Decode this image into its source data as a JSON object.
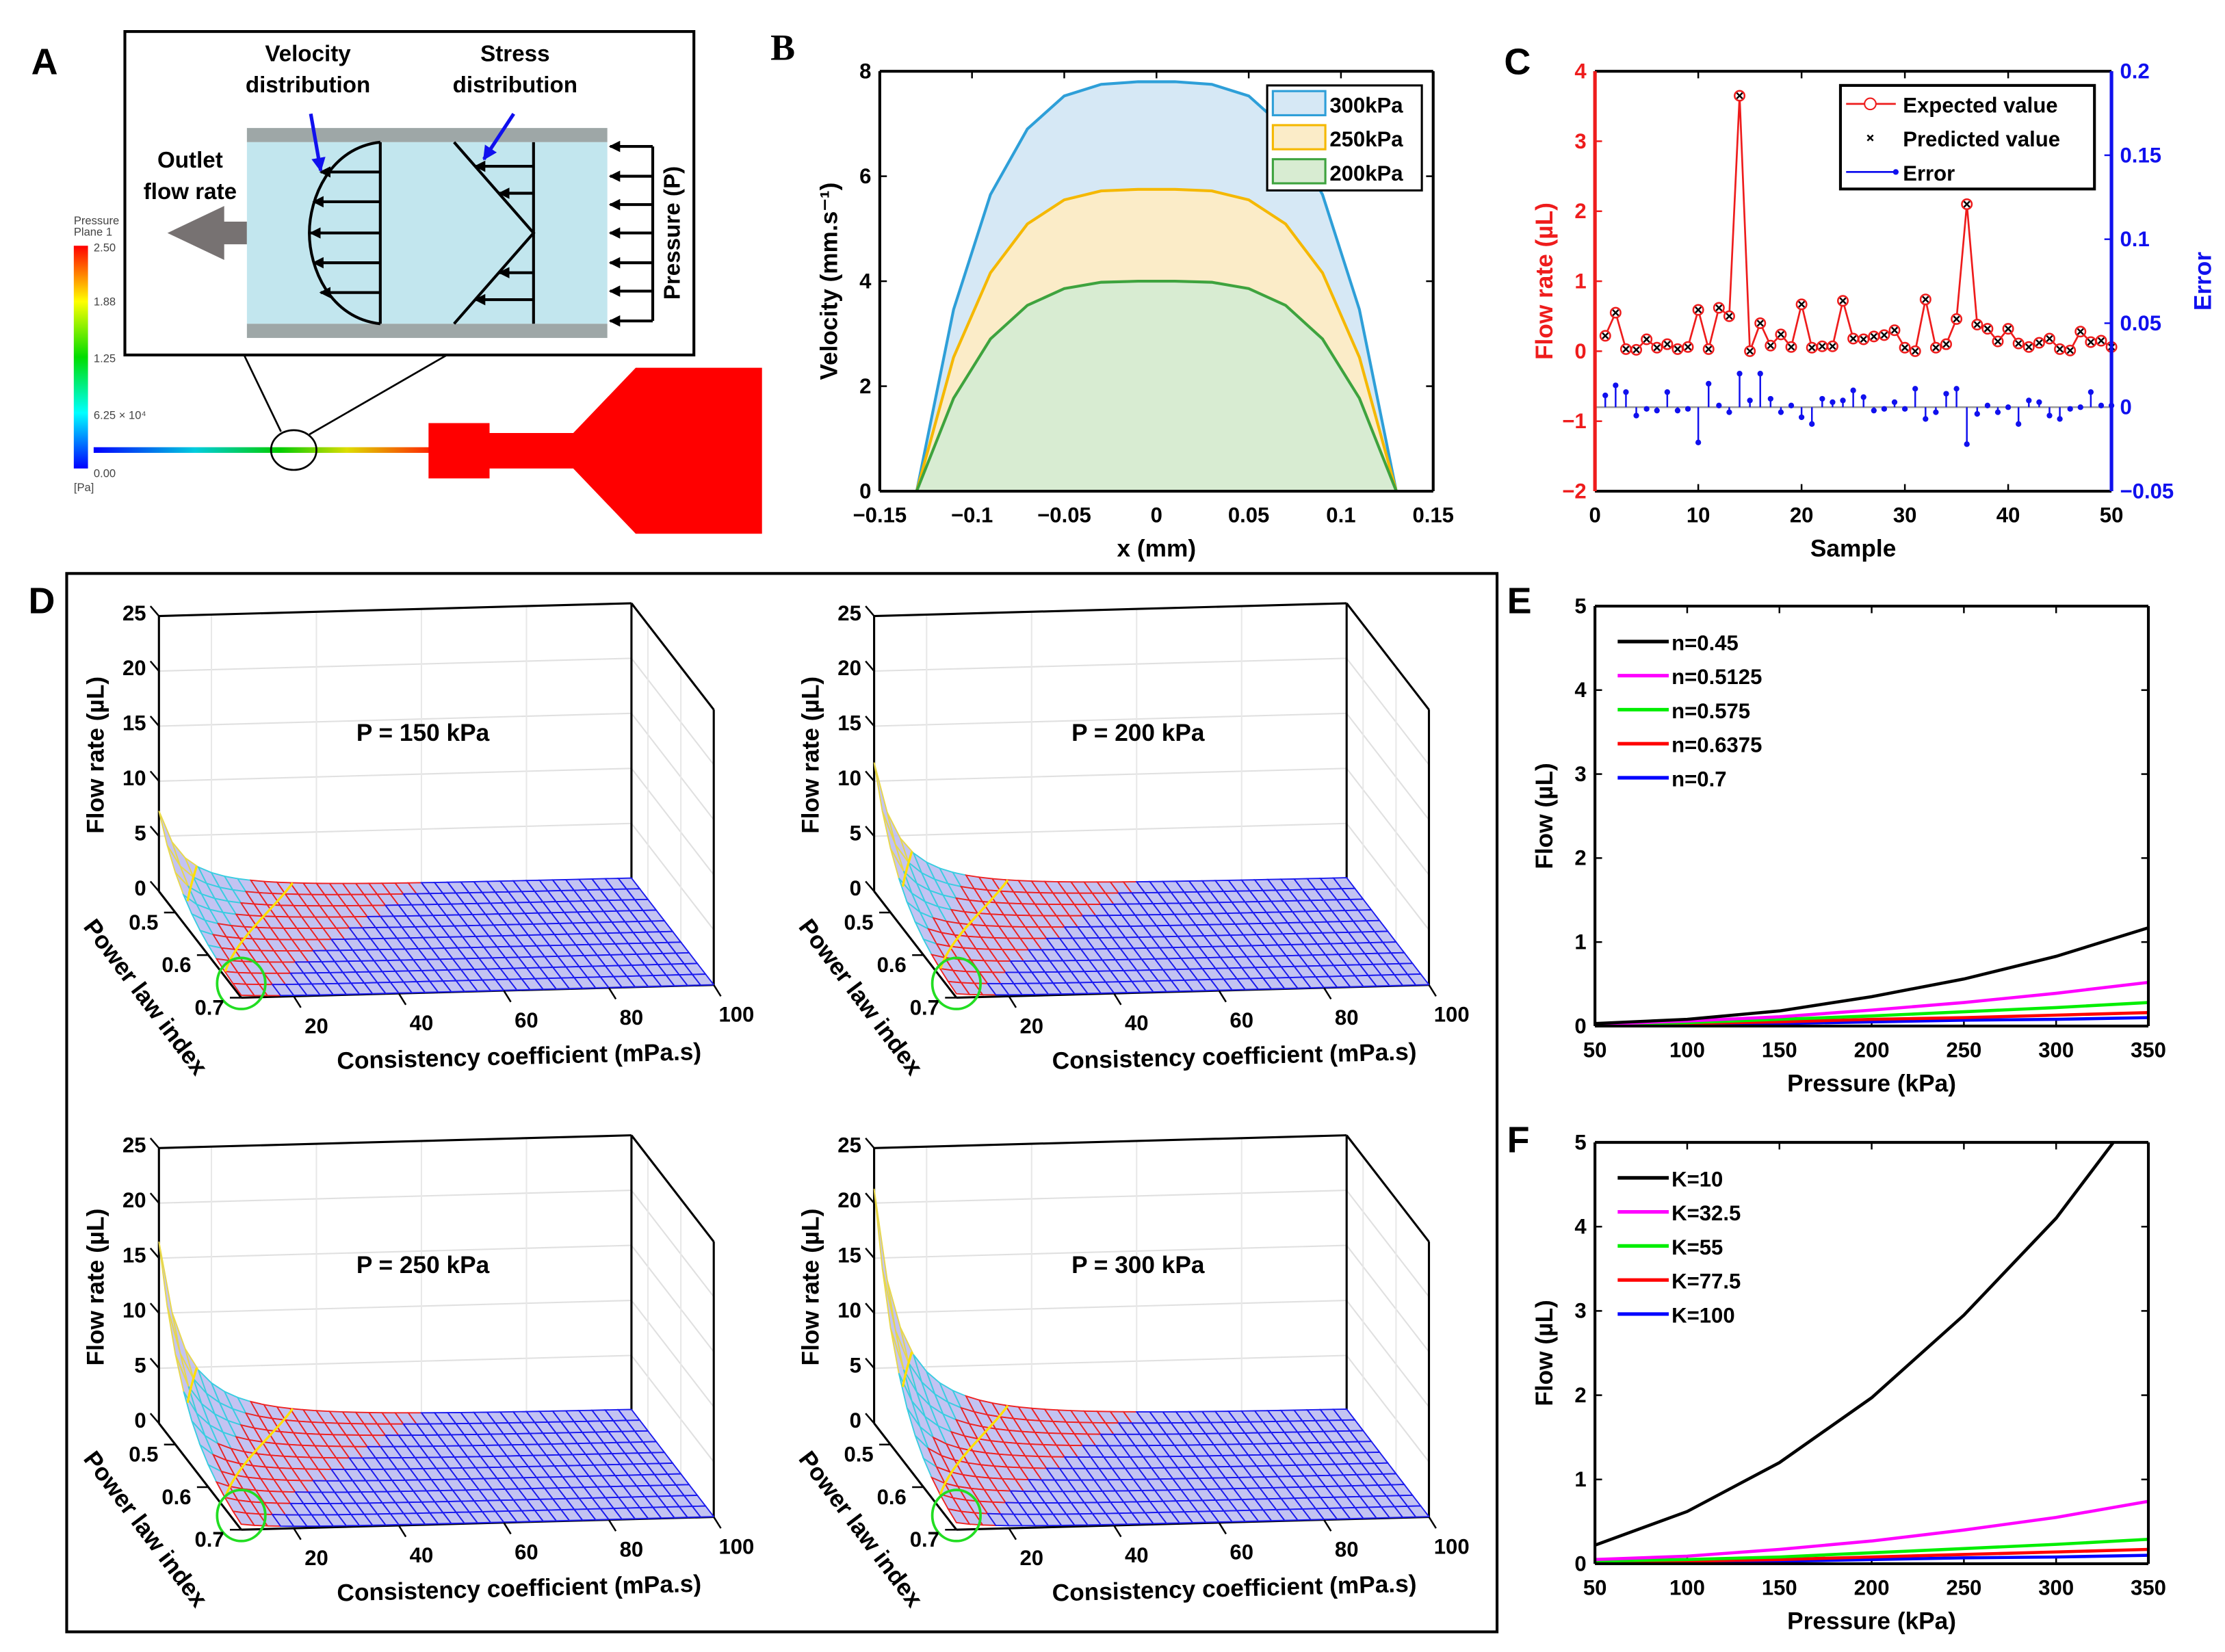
{
  "panel_labels": {
    "a": "A",
    "b": "B",
    "c": "C",
    "d": "D",
    "e": "E",
    "f": "F"
  },
  "panel_a": {
    "velocity_title": [
      "Velocity",
      "distribution"
    ],
    "stress_title": [
      "Stress",
      "distribution"
    ],
    "outlet_label": [
      "Outlet",
      "flow rate"
    ],
    "pressure_label": "Pressure (P)",
    "colorbar": {
      "title": [
        "Pressure",
        "Plane 1"
      ],
      "ticks": [
        "2.50",
        "1.88",
        "1.25",
        "6.25 × 10⁴",
        "0.00"
      ],
      "unit": "[Pa]"
    },
    "colors": {
      "fluid": "#c2e6ee",
      "wall": "#9ea7a7",
      "outlet_arrow": "#777272",
      "nozzle": "#ff0000",
      "pointer": "#1010ee"
    }
  },
  "chart_data": [
    {
      "type": "area",
      "title": "",
      "xlabel": "x (mm)",
      "ylabel": "Velocity (mm.s⁻¹)",
      "xlim": [
        -0.15,
        0.15
      ],
      "ylim": [
        0,
        8
      ],
      "xtick_values": [
        -0.15,
        -0.1,
        -0.05,
        0,
        0.05,
        0.1,
        0.15
      ],
      "xtick_labels": [
        "−0.15",
        "−0.1",
        "−0.05",
        "0",
        "0.05",
        "0.1",
        "0.15"
      ],
      "ytick_values": [
        0,
        2,
        4,
        6,
        8
      ],
      "ytick_labels": [
        "0",
        "2",
        "4",
        "6",
        "8"
      ],
      "legend": "top-right",
      "x": [
        -0.13,
        -0.11,
        -0.09,
        -0.07,
        -0.05,
        -0.03,
        -0.01,
        0,
        0.01,
        0.03,
        0.05,
        0.07,
        0.09,
        0.11,
        0.13
      ],
      "series": [
        {
          "name": "300kPa",
          "color": "#2e9fd8",
          "fill": "#d6e8f5",
          "values": [
            0,
            3.46,
            5.65,
            6.9,
            7.53,
            7.75,
            7.8,
            7.8,
            7.8,
            7.75,
            7.53,
            6.9,
            5.65,
            3.46,
            0
          ]
        },
        {
          "name": "250kPa",
          "color": "#f5b800",
          "fill": "#fbecc8",
          "values": [
            0,
            2.55,
            4.16,
            5.09,
            5.55,
            5.72,
            5.75,
            5.75,
            5.75,
            5.72,
            5.55,
            5.09,
            4.16,
            2.55,
            0
          ]
        },
        {
          "name": "200kPa",
          "color": "#3ea33e",
          "fill": "#d8ecd2",
          "values": [
            0,
            1.77,
            2.9,
            3.54,
            3.86,
            3.98,
            4.0,
            4.0,
            4.0,
            3.98,
            3.86,
            3.54,
            2.9,
            1.77,
            0
          ]
        }
      ]
    },
    {
      "type": "line",
      "title": "",
      "xlabel": "Sample",
      "ylabel": "Flow rate (µL)",
      "y2label": "Error",
      "xlim": [
        0,
        50
      ],
      "ylim": [
        -2,
        4
      ],
      "y2lim": [
        -0.05,
        0.2
      ],
      "xtick_values": [
        0,
        10,
        20,
        30,
        40,
        50
      ],
      "xtick_labels": [
        "0",
        "10",
        "20",
        "30",
        "40",
        "50"
      ],
      "ytick_values": [
        -2,
        -1,
        0,
        1,
        2,
        3,
        4
      ],
      "ytick_labels": [
        "−2",
        "−1",
        "0",
        "1",
        "2",
        "3",
        "4"
      ],
      "y2tick_values": [
        -0.05,
        0,
        0.05,
        0.1,
        0.15,
        0.2
      ],
      "y2tick_labels": [
        "−0.05",
        "0",
        "0.05",
        "0.1",
        "0.15",
        "0.2"
      ],
      "legend": "top-right",
      "colors": {
        "expected": "#ee1c1c",
        "predicted": "#000000",
        "error": "#1010ee"
      },
      "series": [
        {
          "name": "Expected value",
          "values": [
            0.22,
            0.55,
            0.03,
            0.02,
            0.17,
            0.05,
            0.1,
            0.03,
            0.06,
            0.59,
            0.03,
            0.62,
            0.5,
            3.65,
            0.0,
            0.4,
            0.08,
            0.24,
            0.06,
            0.67,
            0.05,
            0.07,
            0.07,
            0.72,
            0.18,
            0.17,
            0.21,
            0.23,
            0.3,
            0.05,
            0.0,
            0.74,
            0.05,
            0.1,
            0.46,
            2.1,
            0.38,
            0.32,
            0.14,
            0.32,
            0.11,
            0.06,
            0.12,
            0.18,
            0.03,
            0.01,
            0.28,
            0.13,
            0.15,
            0.06
          ]
        },
        {
          "name": "Predicted value",
          "values": [
            0.22,
            0.55,
            0.03,
            0.02,
            0.17,
            0.05,
            0.1,
            0.03,
            0.06,
            0.59,
            0.03,
            0.62,
            0.5,
            3.65,
            0.0,
            0.4,
            0.08,
            0.24,
            0.06,
            0.67,
            0.05,
            0.07,
            0.07,
            0.72,
            0.18,
            0.17,
            0.21,
            0.23,
            0.3,
            0.05,
            0.0,
            0.74,
            0.05,
            0.1,
            0.46,
            2.1,
            0.38,
            0.32,
            0.14,
            0.32,
            0.11,
            0.06,
            0.12,
            0.18,
            0.03,
            0.01,
            0.28,
            0.13,
            0.15,
            0.06
          ]
        },
        {
          "name": "Error",
          "axis": "right",
          "values": [
            0.007,
            0.013,
            0.009,
            -0.005,
            -0.001,
            -0.002,
            0.009,
            -0.002,
            -0.001,
            -0.021,
            0.014,
            0.001,
            -0.003,
            0.02,
            0.004,
            0.02,
            0.005,
            -0.003,
            0.001,
            -0.006,
            -0.01,
            0.005,
            0.003,
            0.004,
            0.01,
            0.006,
            -0.002,
            -0.001,
            0.003,
            -0.001,
            0.011,
            -0.007,
            -0.003,
            0.008,
            0.011,
            -0.022,
            -0.004,
            0.001,
            -0.003,
            0.0,
            -0.01,
            0.004,
            0.003,
            -0.005,
            -0.007,
            -0.001,
            0.0,
            0.009,
            0.001,
            0.001
          ]
        }
      ]
    },
    {
      "type": "surface",
      "xlabel": "Consistency coefficient (mPa.s)",
      "ylabel": "Power law index",
      "zlabel": "Flow rate (µL)",
      "xlim": [
        10,
        100
      ],
      "ylim": [
        0.45,
        0.7
      ],
      "zlim": [
        0,
        25
      ],
      "xtick_values": [
        20,
        40,
        60,
        80,
        100
      ],
      "xtick_labels": [
        "20",
        "40",
        "60",
        "80",
        "100"
      ],
      "ytick_values": [
        0.5,
        0.6,
        0.7
      ],
      "ytick_labels": [
        "0.5",
        "0.6",
        "0.7"
      ],
      "ztick_values": [
        0,
        5,
        10,
        15,
        20,
        25
      ],
      "ztick_labels": [
        "0",
        "5",
        "10",
        "15",
        "20",
        "25"
      ],
      "panels": [
        {
          "title": "P = 150 kPa",
          "peak_flow": 7.3
        },
        {
          "title": "P = 200 kPa",
          "peak_flow": 11.7
        },
        {
          "title": "P = 250 kPa",
          "peak_flow": 16.5
        },
        {
          "title": "P = 300 kPa",
          "peak_flow": 21.3
        }
      ]
    },
    {
      "type": "line",
      "xlabel": "Pressure (kPa)",
      "ylabel": "Flow (µL)",
      "xlim": [
        50,
        350
      ],
      "ylim": [
        0,
        5
      ],
      "xtick_values": [
        50,
        100,
        150,
        200,
        250,
        300,
        350
      ],
      "xtick_labels": [
        "50",
        "100",
        "150",
        "200",
        "250",
        "300",
        "350"
      ],
      "ytick_values": [
        0,
        1,
        2,
        3,
        4,
        5
      ],
      "ytick_labels": [
        "0",
        "1",
        "2",
        "3",
        "4",
        "5"
      ],
      "legend": "top-left",
      "x": [
        50,
        100,
        150,
        200,
        250,
        300,
        350
      ],
      "series": [
        {
          "name": "n=0.45",
          "color": "#000000",
          "values": [
            0.03,
            0.08,
            0.18,
            0.35,
            0.56,
            0.83,
            1.17
          ]
        },
        {
          "name": "n=0.5125",
          "color": "#ff00ff",
          "values": [
            0.02,
            0.06,
            0.11,
            0.19,
            0.28,
            0.39,
            0.52
          ]
        },
        {
          "name": "n=0.575",
          "color": "#00ee00",
          "values": [
            0.02,
            0.04,
            0.08,
            0.12,
            0.17,
            0.22,
            0.28
          ]
        },
        {
          "name": "n=0.6375",
          "color": "#ff0000",
          "values": [
            0.01,
            0.03,
            0.05,
            0.08,
            0.1,
            0.13,
            0.16
          ]
        },
        {
          "name": "n=0.7",
          "color": "#0000ff",
          "values": [
            0.01,
            0.02,
            0.03,
            0.05,
            0.07,
            0.08,
            0.1
          ]
        }
      ]
    },
    {
      "type": "line",
      "xlabel": "Pressure (kPa)",
      "ylabel": "Flow (µL)",
      "xlim": [
        50,
        350
      ],
      "ylim": [
        0,
        5
      ],
      "xtick_values": [
        50,
        100,
        150,
        200,
        250,
        300,
        350
      ],
      "xtick_labels": [
        "50",
        "100",
        "150",
        "200",
        "250",
        "300",
        "350"
      ],
      "ytick_values": [
        0,
        1,
        2,
        3,
        4,
        5
      ],
      "ytick_labels": [
        "0",
        "1",
        "2",
        "3",
        "4",
        "5"
      ],
      "legend": "top-left",
      "x": [
        50,
        100,
        150,
        200,
        250,
        300,
        350
      ],
      "series": [
        {
          "name": "K=10",
          "color": "#000000",
          "values": [
            0.22,
            0.62,
            1.2,
            1.97,
            2.95,
            4.1,
            5.55
          ]
        },
        {
          "name": "K=32.5",
          "color": "#ff00ff",
          "values": [
            0.05,
            0.09,
            0.17,
            0.27,
            0.4,
            0.55,
            0.74
          ]
        },
        {
          "name": "K=55",
          "color": "#00ee00",
          "values": [
            0.03,
            0.05,
            0.08,
            0.13,
            0.18,
            0.23,
            0.29
          ]
        },
        {
          "name": "K=77.5",
          "color": "#ff0000",
          "values": [
            0.02,
            0.03,
            0.05,
            0.08,
            0.11,
            0.14,
            0.17
          ]
        },
        {
          "name": "K=100",
          "color": "#0000ff",
          "values": [
            0.01,
            0.02,
            0.03,
            0.05,
            0.07,
            0.08,
            0.1
          ]
        }
      ]
    }
  ]
}
